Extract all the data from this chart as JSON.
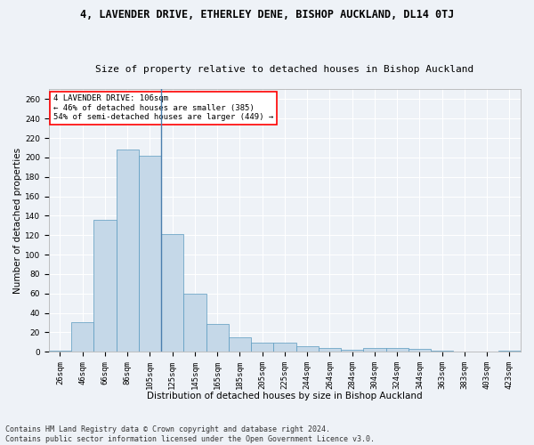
{
  "title1": "4, LAVENDER DRIVE, ETHERLEY DENE, BISHOP AUCKLAND, DL14 0TJ",
  "title2": "Size of property relative to detached houses in Bishop Auckland",
  "xlabel": "Distribution of detached houses by size in Bishop Auckland",
  "ylabel": "Number of detached properties",
  "categories": [
    "26sqm",
    "46sqm",
    "66sqm",
    "86sqm",
    "105sqm",
    "125sqm",
    "145sqm",
    "165sqm",
    "185sqm",
    "205sqm",
    "225sqm",
    "244sqm",
    "264sqm",
    "284sqm",
    "304sqm",
    "324sqm",
    "344sqm",
    "363sqm",
    "383sqm",
    "403sqm",
    "423sqm"
  ],
  "values": [
    1,
    30,
    136,
    208,
    202,
    121,
    60,
    29,
    15,
    9,
    9,
    6,
    4,
    2,
    4,
    4,
    3,
    1,
    0,
    0,
    1
  ],
  "bar_color": "#c5d8e8",
  "bar_edge_color": "#5a9abf",
  "vline_color": "#4a7ead",
  "annotation_text": "4 LAVENDER DRIVE: 106sqm\n← 46% of detached houses are smaller (385)\n54% of semi-detached houses are larger (449) →",
  "annotation_box_color": "white",
  "annotation_border_color": "red",
  "ylim": [
    0,
    270
  ],
  "yticks": [
    0,
    20,
    40,
    60,
    80,
    100,
    120,
    140,
    160,
    180,
    200,
    220,
    240,
    260
  ],
  "footnote": "Contains HM Land Registry data © Crown copyright and database right 2024.\nContains public sector information licensed under the Open Government Licence v3.0.",
  "background_color": "#eef2f7",
  "grid_color": "white",
  "title1_fontsize": 8.5,
  "title2_fontsize": 8,
  "xlabel_fontsize": 7.5,
  "ylabel_fontsize": 7.5,
  "tick_fontsize": 6.5,
  "annotation_fontsize": 6.5,
  "footnote_fontsize": 6.0
}
